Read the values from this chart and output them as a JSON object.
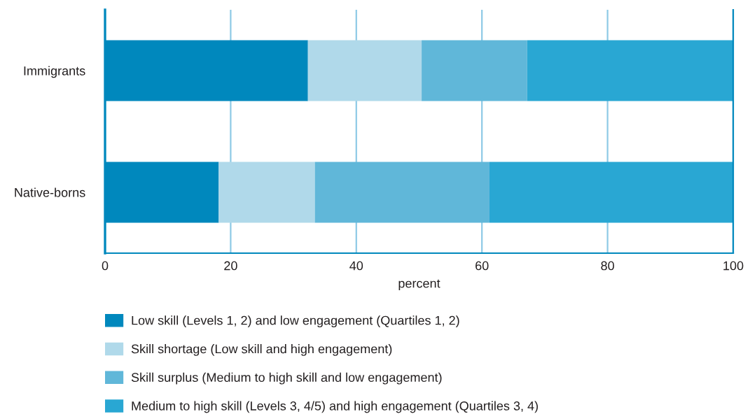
{
  "chart_data": {
    "type": "bar",
    "orientation": "horizontal",
    "stacked": true,
    "categories": [
      "Immigrants",
      "Native-borns"
    ],
    "series": [
      {
        "name": "Low skill (Levels 1, 2) and low engagement (Quartiles 1, 2)",
        "color": "#0088bd",
        "values": [
          32.3,
          18.1
        ]
      },
      {
        "name": "Skill shortage (Low skill and high engagement)",
        "color": "#b0d9ea",
        "values": [
          18.1,
          15.3
        ]
      },
      {
        "name": "Skill surplus (Medium to high skill and low engagement)",
        "color": "#60b7d9",
        "values": [
          16.8,
          27.8
        ]
      },
      {
        "name": "Medium to high skill (Levels 3, 4/5) and high engagement (Quartiles 3, 4)",
        "color": "#29a7d3",
        "values": [
          32.8,
          38.8
        ]
      }
    ],
    "xlabel": "percent",
    "xlim": [
      0,
      100
    ],
    "xticks": [
      0,
      20,
      40,
      60,
      80,
      100
    ],
    "grid": "x",
    "legend": "bottom"
  }
}
